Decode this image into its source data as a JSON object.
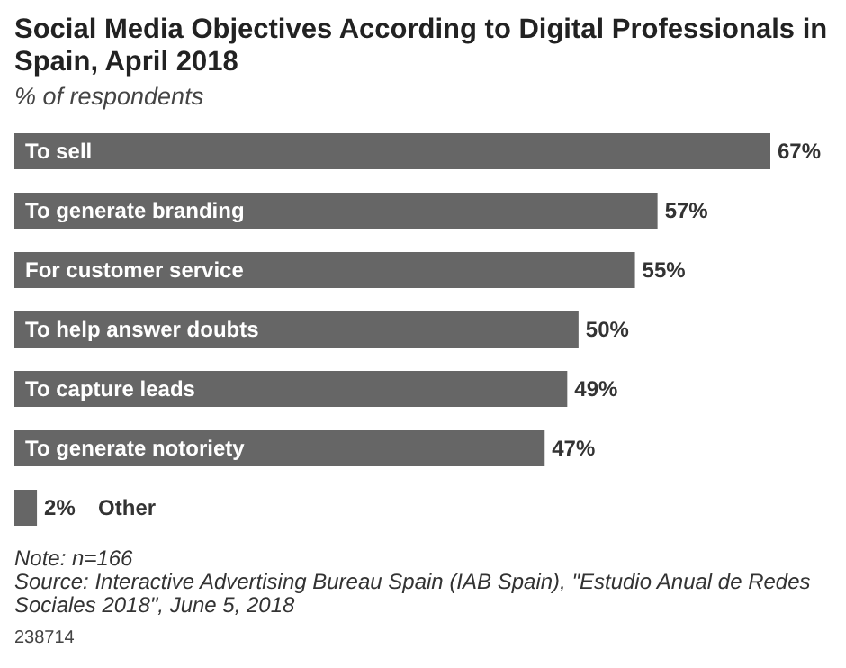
{
  "chart_data": {
    "type": "bar",
    "orientation": "horizontal",
    "title": "Social Media Objectives According to Digital Professionals in Spain, April 2018",
    "subtitle": "% of respondents",
    "categories": [
      "To sell",
      "To generate branding",
      "For customer service",
      "To help answer doubts",
      "To capture leads",
      "To generate notoriety",
      "Other"
    ],
    "values": [
      67,
      57,
      55,
      50,
      49,
      47,
      2
    ],
    "value_labels": [
      "67%",
      "57%",
      "55%",
      "50%",
      "49%",
      "47%",
      "2%"
    ],
    "color": "#666666",
    "annotations": [
      "Note: n=166",
      "Source: Interactive Advertising Bureau Spain (IAB Spain), \"Estudio Anual de Redes Sociales 2018\", June 5, 2018",
      "238714"
    ]
  }
}
